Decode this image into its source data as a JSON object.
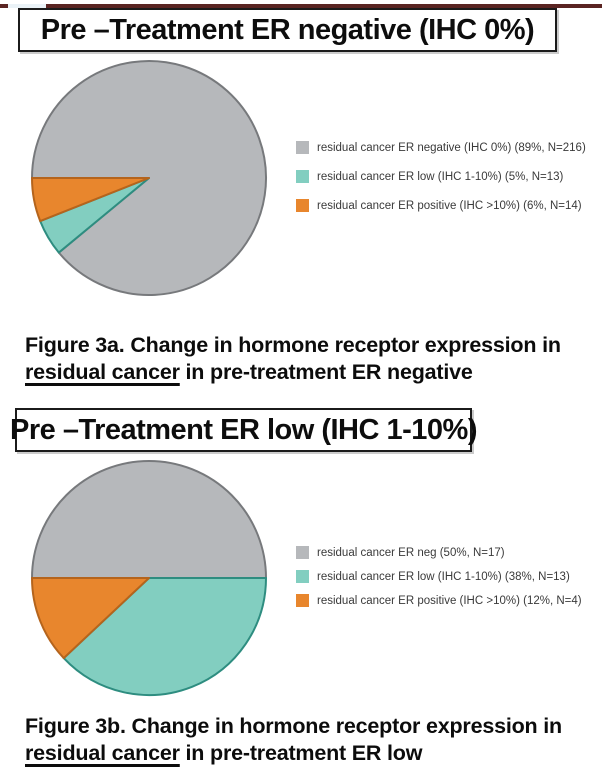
{
  "chart_data": [
    {
      "type": "pie",
      "title": "Pre –Treatment ER negative (IHC 0%)",
      "start_angle_deg_compass": 270,
      "direction": "clockwise",
      "legend_position": "right",
      "slices": [
        {
          "name": "residual cancer ER negative (IHC 0%)",
          "pct": 89,
          "n": 216,
          "color": "#b6b8bb",
          "stroke": "#77797c",
          "legend": "residual cancer ER negative (IHC 0%) (89%, N=216)"
        },
        {
          "name": "residual cancer ER low (IHC 1-10%)",
          "pct": 5,
          "n": 13,
          "color": "#82cec0",
          "stroke": "#2e8d80",
          "legend": "residual cancer ER low (IHC 1-10%) (5%, N=13)"
        },
        {
          "name": "residual cancer ER positive (IHC >10%)",
          "pct": 6,
          "n": 14,
          "color": "#e8862d",
          "stroke": "#b5641c",
          "legend": "residual cancer ER positive (IHC >10%) (6%, N=14)"
        }
      ]
    },
    {
      "type": "pie",
      "title": "Pre –Treatment ER low (IHC 1-10%)",
      "start_angle_deg_compass": 270,
      "direction": "clockwise",
      "legend_position": "right",
      "slices": [
        {
          "name": "residual cancer ER neg",
          "pct": 50,
          "n": 17,
          "color": "#b6b8bb",
          "stroke": "#77797c",
          "legend": "residual cancer ER neg (50%, N=17)"
        },
        {
          "name": "residual cancer ER low (IHC 1-10%)",
          "pct": 38,
          "n": 13,
          "color": "#82cec0",
          "stroke": "#2e8d80",
          "legend": "residual cancer ER low (IHC 1-10%) (38%, N=13)"
        },
        {
          "name": "residual cancer ER positive (IHC >10%)",
          "pct": 12,
          "n": 4,
          "color": "#e8862d",
          "stroke": "#b5641c",
          "legend": "residual cancer ER positive (IHC >10%) (12%, N=4)"
        }
      ]
    }
  ],
  "figures": [
    {
      "caption": {
        "line1": "Figure 3a. Change in hormone receptor expression in",
        "underline": "residual cancer",
        "line2_rest": " in pre-treatment ER negative"
      }
    },
    {
      "caption": {
        "line1": "Figure 3b. Change in hormone receptor expression in",
        "underline": "residual cancer",
        "line2_rest": " in pre-treatment ER low"
      }
    }
  ]
}
